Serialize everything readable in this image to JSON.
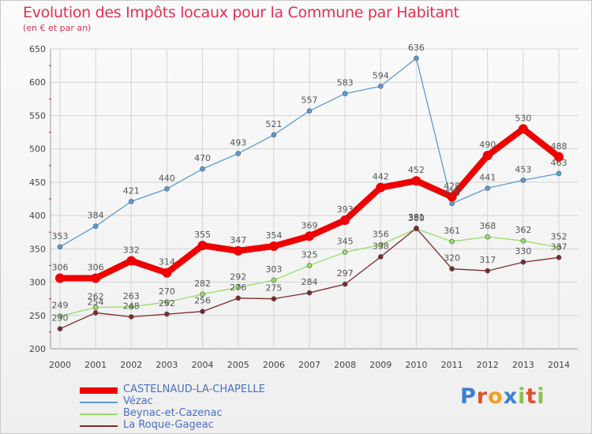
{
  "title": "Evolution des Impôts locaux pour la Commune par Habitant",
  "subtitle": "(en € et par an)",
  "logo": "Proxiti",
  "chart_data": {
    "type": "line",
    "title": "Evolution des Impôts locaux pour la Commune par Habitant",
    "xlabel": "",
    "ylabel": "(en € et par an)",
    "ylim": [
      200,
      650
    ],
    "yticks": [
      200,
      250,
      300,
      350,
      400,
      450,
      500,
      550,
      600,
      650
    ],
    "x": [
      "2000",
      "2001",
      "2002",
      "2003",
      "2004",
      "2005",
      "2006",
      "2007",
      "2008",
      "2009",
      "2010",
      "2011",
      "2012",
      "2013",
      "2014"
    ],
    "series": [
      {
        "name": "CASTELNAUD-LA-CHAPELLE",
        "color": "#ee0000",
        "bold": true,
        "values": [
          306,
          306,
          332,
          314,
          355,
          347,
          354,
          369,
          393,
          442,
          452,
          428,
          490,
          530,
          488
        ]
      },
      {
        "name": "Vézac",
        "color": "#5a9bd4",
        "bold": false,
        "values": [
          353,
          384,
          421,
          440,
          470,
          493,
          521,
          557,
          583,
          594,
          636,
          418,
          441,
          453,
          463
        ]
      },
      {
        "name": "Beynac-et-Cazenac",
        "color": "#99dd66",
        "bold": false,
        "values": [
          249,
          262,
          263,
          270,
          282,
          292,
          303,
          325,
          345,
          356,
          380,
          361,
          368,
          362,
          352
        ]
      },
      {
        "name": "La Roque-Gageac",
        "color": "#7a2a2a",
        "bold": false,
        "values": [
          230,
          254,
          248,
          252,
          256,
          276,
          275,
          284,
          297,
          338,
          381,
          320,
          317,
          330,
          337
        ]
      }
    ]
  }
}
